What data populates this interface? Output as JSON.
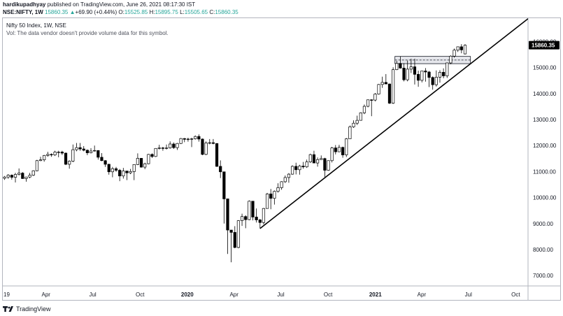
{
  "header": {
    "publisher_name": "hardikupadhyay",
    "publisher_text": " published on TradingView.com, June 26, 2021 08:17:30 IST",
    "symbol": "NSE:NIFTY, 1W",
    "last": "15860.35",
    "change_arrow": "▲",
    "change": "+69.90 (+0.44%)",
    "o_label": "O:",
    "o_value": "15525.85",
    "h_label": "H:",
    "h_value": "15895.75",
    "l_label": "L:",
    "l_value": "15505.65",
    "c_label": "C:",
    "c_value": "15860.35"
  },
  "legend": {
    "title": "Nifty 50 Index, 1W, NSE",
    "volume_note": "Vol: The data vendor doesn't provide volume data for this symbol."
  },
  "footer": {
    "brand": "TradingView",
    "logo_icon": "tradingview-logo-icon"
  },
  "colors": {
    "bull": "#ffffff",
    "bear": "#000000",
    "trendline": "#000000",
    "price_tag": "#000000"
  },
  "chart_data": {
    "type": "candlestick",
    "title": "Nifty 50 Index, 1W, NSE",
    "current_price_label": "15860.35",
    "y_ticks": [
      "7000.00",
      "8000.00",
      "9000.00",
      "10000.00",
      "11000.00",
      "12000.00",
      "13000.00",
      "14000.00",
      "15000.00",
      "16000.00"
    ],
    "ylim": [
      6600,
      16900
    ],
    "x_ticks": [
      "19",
      "Apr",
      "Jul",
      "Oct",
      "2020",
      "Apr",
      "Jul",
      "Oct",
      "2021",
      "Apr",
      "Jul",
      "Oct"
    ],
    "x_tick_dates": [
      "2019-01-07",
      "2019-04-01",
      "2019-07-01",
      "2019-10-01",
      "2020-01-01",
      "2020-04-01",
      "2020-07-01",
      "2020-10-01",
      "2021-01-01",
      "2021-04-01",
      "2021-07-01",
      "2021-10-01"
    ],
    "xlim": [
      "2019-01-07",
      "2021-10-25"
    ],
    "candles": [
      {
        "date": "2019-01-07",
        "o": 10740,
        "h": 10830,
        "l": 10680,
        "c": 10790
      },
      {
        "date": "2019-01-14",
        "o": 10790,
        "h": 10900,
        "l": 10720,
        "c": 10860
      },
      {
        "date": "2019-01-21",
        "o": 10860,
        "h": 10890,
        "l": 10690,
        "c": 10780
      },
      {
        "date": "2019-01-28",
        "o": 10780,
        "h": 10950,
        "l": 10580,
        "c": 10890
      },
      {
        "date": "2019-02-04",
        "o": 10890,
        "h": 11120,
        "l": 10850,
        "c": 10940
      },
      {
        "date": "2019-02-11",
        "o": 10940,
        "h": 10980,
        "l": 10720,
        "c": 10730
      },
      {
        "date": "2019-02-18",
        "o": 10730,
        "h": 10800,
        "l": 10610,
        "c": 10790
      },
      {
        "date": "2019-02-25",
        "o": 10790,
        "h": 10950,
        "l": 10740,
        "c": 10860
      },
      {
        "date": "2019-03-04",
        "o": 10860,
        "h": 11050,
        "l": 10830,
        "c": 11030
      },
      {
        "date": "2019-03-11",
        "o": 11030,
        "h": 11450,
        "l": 11010,
        "c": 11420
      },
      {
        "date": "2019-03-18",
        "o": 11420,
        "h": 11570,
        "l": 11400,
        "c": 11450
      },
      {
        "date": "2019-03-25",
        "o": 11450,
        "h": 11640,
        "l": 11380,
        "c": 11620
      },
      {
        "date": "2019-04-01",
        "o": 11620,
        "h": 11760,
        "l": 11570,
        "c": 11660
      },
      {
        "date": "2019-04-08",
        "o": 11660,
        "h": 11700,
        "l": 11570,
        "c": 11640
      },
      {
        "date": "2019-04-15",
        "o": 11640,
        "h": 11800,
        "l": 11600,
        "c": 11750
      },
      {
        "date": "2019-04-22",
        "o": 11750,
        "h": 11800,
        "l": 11550,
        "c": 11750
      },
      {
        "date": "2019-04-29",
        "o": 11750,
        "h": 11800,
        "l": 11640,
        "c": 11710
      },
      {
        "date": "2019-05-06",
        "o": 11710,
        "h": 11730,
        "l": 11250,
        "c": 11280
      },
      {
        "date": "2019-05-13",
        "o": 11280,
        "h": 11430,
        "l": 11110,
        "c": 11400
      },
      {
        "date": "2019-05-20",
        "o": 11400,
        "h": 12040,
        "l": 11360,
        "c": 11840
      },
      {
        "date": "2019-05-27",
        "o": 11840,
        "h": 12100,
        "l": 11780,
        "c": 11920
      },
      {
        "date": "2019-06-03",
        "o": 11920,
        "h": 12100,
        "l": 11800,
        "c": 11870
      },
      {
        "date": "2019-06-10",
        "o": 11870,
        "h": 11980,
        "l": 11780,
        "c": 11820
      },
      {
        "date": "2019-06-17",
        "o": 11820,
        "h": 11850,
        "l": 11630,
        "c": 11720
      },
      {
        "date": "2019-06-24",
        "o": 11720,
        "h": 11900,
        "l": 11700,
        "c": 11790
      },
      {
        "date": "2019-07-01",
        "o": 11790,
        "h": 12000,
        "l": 11770,
        "c": 11810
      },
      {
        "date": "2019-07-08",
        "o": 11810,
        "h": 11820,
        "l": 11460,
        "c": 11550
      },
      {
        "date": "2019-07-15",
        "o": 11550,
        "h": 11710,
        "l": 11400,
        "c": 11420
      },
      {
        "date": "2019-07-22",
        "o": 11420,
        "h": 11440,
        "l": 11180,
        "c": 11280
      },
      {
        "date": "2019-07-29",
        "o": 11280,
        "h": 11300,
        "l": 10880,
        "c": 10990
      },
      {
        "date": "2019-08-05",
        "o": 10990,
        "h": 11180,
        "l": 10780,
        "c": 11110
      },
      {
        "date": "2019-08-12",
        "o": 11110,
        "h": 11180,
        "l": 10990,
        "c": 11050
      },
      {
        "date": "2019-08-19",
        "o": 11050,
        "h": 11100,
        "l": 10630,
        "c": 10830
      },
      {
        "date": "2019-08-26",
        "o": 10830,
        "h": 11140,
        "l": 10730,
        "c": 11020
      },
      {
        "date": "2019-09-02",
        "o": 11020,
        "h": 11030,
        "l": 10670,
        "c": 10950
      },
      {
        "date": "2019-09-09",
        "o": 10950,
        "h": 11100,
        "l": 10900,
        "c": 11000
      },
      {
        "date": "2019-09-16",
        "o": 11000,
        "h": 11280,
        "l": 10670,
        "c": 11270
      },
      {
        "date": "2019-09-23",
        "o": 11270,
        "h": 11700,
        "l": 11250,
        "c": 11510
      },
      {
        "date": "2019-09-30",
        "o": 11510,
        "h": 11520,
        "l": 11150,
        "c": 11170
      },
      {
        "date": "2019-10-07",
        "o": 11170,
        "h": 11340,
        "l": 11090,
        "c": 11300
      },
      {
        "date": "2019-10-14",
        "o": 11300,
        "h": 11680,
        "l": 11280,
        "c": 11660
      },
      {
        "date": "2019-10-21",
        "o": 11660,
        "h": 11700,
        "l": 11520,
        "c": 11580
      },
      {
        "date": "2019-10-28",
        "o": 11580,
        "h": 11900,
        "l": 11560,
        "c": 11890
      },
      {
        "date": "2019-11-04",
        "o": 11890,
        "h": 12030,
        "l": 11850,
        "c": 11910
      },
      {
        "date": "2019-11-11",
        "o": 11910,
        "h": 11950,
        "l": 11800,
        "c": 11890
      },
      {
        "date": "2019-11-18",
        "o": 11890,
        "h": 12040,
        "l": 11850,
        "c": 11910
      },
      {
        "date": "2019-11-25",
        "o": 11910,
        "h": 12160,
        "l": 11880,
        "c": 12060
      },
      {
        "date": "2019-12-02",
        "o": 12060,
        "h": 12120,
        "l": 11870,
        "c": 11920
      },
      {
        "date": "2019-12-09",
        "o": 11920,
        "h": 12100,
        "l": 11830,
        "c": 12080
      },
      {
        "date": "2019-12-16",
        "o": 12080,
        "h": 12290,
        "l": 12060,
        "c": 12270
      },
      {
        "date": "2019-12-23",
        "o": 12270,
        "h": 12290,
        "l": 12130,
        "c": 12240
      },
      {
        "date": "2019-12-30",
        "o": 12240,
        "h": 12300,
        "l": 12150,
        "c": 12250
      },
      {
        "date": "2020-01-06",
        "o": 12250,
        "h": 12300,
        "l": 11940,
        "c": 12260
      },
      {
        "date": "2020-01-13",
        "o": 12260,
        "h": 12390,
        "l": 12230,
        "c": 12350
      },
      {
        "date": "2020-01-20",
        "o": 12350,
        "h": 12430,
        "l": 12150,
        "c": 12250
      },
      {
        "date": "2020-01-27",
        "o": 12250,
        "h": 12270,
        "l": 11630,
        "c": 11660
      },
      {
        "date": "2020-02-03",
        "o": 11660,
        "h": 12160,
        "l": 11630,
        "c": 12100
      },
      {
        "date": "2020-02-10",
        "o": 12100,
        "h": 12250,
        "l": 12050,
        "c": 12110
      },
      {
        "date": "2020-02-17",
        "o": 12110,
        "h": 12250,
        "l": 12050,
        "c": 12080
      },
      {
        "date": "2020-02-24",
        "o": 12080,
        "h": 12090,
        "l": 11180,
        "c": 11200
      },
      {
        "date": "2020-03-02",
        "o": 11200,
        "h": 11430,
        "l": 10750,
        "c": 10990
      },
      {
        "date": "2020-03-09",
        "o": 10990,
        "h": 10990,
        "l": 9000,
        "c": 9950
      },
      {
        "date": "2020-03-16",
        "o": 9950,
        "h": 9950,
        "l": 7830,
        "c": 8750
      },
      {
        "date": "2020-03-23",
        "o": 8750,
        "h": 8750,
        "l": 7510,
        "c": 8660
      },
      {
        "date": "2020-03-30",
        "o": 8660,
        "h": 8900,
        "l": 8050,
        "c": 8080
      },
      {
        "date": "2020-04-06",
        "o": 8080,
        "h": 9130,
        "l": 8050,
        "c": 9110
      },
      {
        "date": "2020-04-13",
        "o": 9110,
        "h": 9380,
        "l": 8910,
        "c": 9270
      },
      {
        "date": "2020-04-20",
        "o": 9270,
        "h": 9320,
        "l": 8820,
        "c": 9150
      },
      {
        "date": "2020-04-27",
        "o": 9150,
        "h": 9890,
        "l": 9130,
        "c": 9860
      },
      {
        "date": "2020-05-04",
        "o": 9860,
        "h": 9860,
        "l": 9120,
        "c": 9250
      },
      {
        "date": "2020-05-11",
        "o": 9250,
        "h": 9580,
        "l": 9040,
        "c": 9140
      },
      {
        "date": "2020-05-18",
        "o": 9140,
        "h": 9180,
        "l": 8810,
        "c": 9040
      },
      {
        "date": "2020-05-25",
        "o": 9040,
        "h": 9600,
        "l": 8970,
        "c": 9580
      },
      {
        "date": "2020-06-01",
        "o": 9580,
        "h": 10180,
        "l": 9570,
        "c": 10140
      },
      {
        "date": "2020-06-08",
        "o": 10140,
        "h": 10330,
        "l": 9550,
        "c": 9970
      },
      {
        "date": "2020-06-15",
        "o": 9970,
        "h": 10270,
        "l": 9730,
        "c": 10240
      },
      {
        "date": "2020-06-22",
        "o": 10240,
        "h": 10550,
        "l": 10190,
        "c": 10380
      },
      {
        "date": "2020-06-29",
        "o": 10380,
        "h": 10630,
        "l": 10300,
        "c": 10610
      },
      {
        "date": "2020-07-06",
        "o": 10610,
        "h": 10850,
        "l": 10560,
        "c": 10770
      },
      {
        "date": "2020-07-13",
        "o": 10770,
        "h": 10940,
        "l": 10570,
        "c": 10900
      },
      {
        "date": "2020-07-20",
        "o": 10900,
        "h": 11240,
        "l": 10880,
        "c": 11200
      },
      {
        "date": "2020-07-27",
        "o": 11200,
        "h": 11340,
        "l": 10890,
        "c": 11070
      },
      {
        "date": "2020-08-03",
        "o": 11070,
        "h": 11260,
        "l": 10880,
        "c": 11210
      },
      {
        "date": "2020-08-10",
        "o": 11210,
        "h": 11370,
        "l": 11110,
        "c": 11180
      },
      {
        "date": "2020-08-17",
        "o": 11180,
        "h": 11460,
        "l": 11140,
        "c": 11370
      },
      {
        "date": "2020-08-24",
        "o": 11370,
        "h": 11690,
        "l": 11330,
        "c": 11650
      },
      {
        "date": "2020-08-31",
        "o": 11650,
        "h": 11800,
        "l": 11320,
        "c": 11330
      },
      {
        "date": "2020-09-07",
        "o": 11330,
        "h": 11540,
        "l": 11190,
        "c": 11460
      },
      {
        "date": "2020-09-14",
        "o": 11460,
        "h": 11620,
        "l": 11470,
        "c": 11500
      },
      {
        "date": "2020-09-21",
        "o": 11500,
        "h": 11530,
        "l": 10790,
        "c": 11050
      },
      {
        "date": "2020-09-28",
        "o": 11050,
        "h": 11430,
        "l": 11030,
        "c": 11420
      },
      {
        "date": "2020-10-05",
        "o": 11420,
        "h": 11950,
        "l": 11350,
        "c": 11910
      },
      {
        "date": "2020-10-12",
        "o": 11910,
        "h": 12020,
        "l": 11660,
        "c": 11760
      },
      {
        "date": "2020-10-19",
        "o": 11760,
        "h": 12030,
        "l": 11750,
        "c": 11930
      },
      {
        "date": "2020-10-26",
        "o": 11930,
        "h": 11960,
        "l": 11530,
        "c": 11640
      },
      {
        "date": "2020-11-02",
        "o": 11640,
        "h": 12290,
        "l": 11560,
        "c": 12260
      },
      {
        "date": "2020-11-09",
        "o": 12260,
        "h": 12770,
        "l": 12260,
        "c": 12720
      },
      {
        "date": "2020-11-16",
        "o": 12720,
        "h": 12970,
        "l": 12680,
        "c": 12860
      },
      {
        "date": "2020-11-23",
        "o": 12860,
        "h": 13150,
        "l": 12790,
        "c": 12970
      },
      {
        "date": "2020-11-30",
        "o": 12970,
        "h": 13280,
        "l": 12960,
        "c": 13260
      },
      {
        "date": "2020-12-07",
        "o": 13260,
        "h": 13580,
        "l": 13210,
        "c": 13510
      },
      {
        "date": "2020-12-14",
        "o": 13510,
        "h": 13770,
        "l": 13470,
        "c": 13760
      },
      {
        "date": "2020-12-21",
        "o": 13760,
        "h": 13780,
        "l": 13130,
        "c": 13750
      },
      {
        "date": "2020-12-28",
        "o": 13750,
        "h": 14020,
        "l": 13700,
        "c": 13980
      },
      {
        "date": "2021-01-04",
        "o": 13980,
        "h": 14370,
        "l": 13960,
        "c": 14350
      },
      {
        "date": "2021-01-11",
        "o": 14350,
        "h": 14650,
        "l": 14220,
        "c": 14430
      },
      {
        "date": "2021-01-18",
        "o": 14430,
        "h": 14750,
        "l": 14360,
        "c": 14370
      },
      {
        "date": "2021-01-25",
        "o": 14370,
        "h": 14380,
        "l": 13600,
        "c": 13630
      },
      {
        "date": "2021-02-01",
        "o": 13630,
        "h": 15010,
        "l": 13600,
        "c": 14920
      },
      {
        "date": "2021-02-08",
        "o": 14920,
        "h": 15260,
        "l": 14900,
        "c": 15160
      },
      {
        "date": "2021-02-15",
        "o": 15160,
        "h": 15430,
        "l": 14960,
        "c": 14980
      },
      {
        "date": "2021-02-22",
        "o": 14980,
        "h": 15170,
        "l": 14470,
        "c": 14530
      },
      {
        "date": "2021-03-01",
        "o": 14530,
        "h": 15270,
        "l": 14470,
        "c": 14940
      },
      {
        "date": "2021-03-08",
        "o": 14940,
        "h": 15340,
        "l": 14790,
        "c": 15030
      },
      {
        "date": "2021-03-15",
        "o": 15030,
        "h": 15340,
        "l": 14350,
        "c": 14740
      },
      {
        "date": "2021-03-22",
        "o": 14740,
        "h": 14880,
        "l": 14260,
        "c": 14510
      },
      {
        "date": "2021-03-29",
        "o": 14510,
        "h": 14880,
        "l": 14430,
        "c": 14870
      },
      {
        "date": "2021-04-05",
        "o": 14870,
        "h": 14980,
        "l": 14460,
        "c": 14830
      },
      {
        "date": "2021-04-12",
        "o": 14830,
        "h": 14870,
        "l": 14250,
        "c": 14620
      },
      {
        "date": "2021-04-19",
        "o": 14620,
        "h": 14660,
        "l": 14150,
        "c": 14340
      },
      {
        "date": "2021-04-26",
        "o": 14340,
        "h": 14890,
        "l": 14270,
        "c": 14630
      },
      {
        "date": "2021-05-03",
        "o": 14630,
        "h": 14900,
        "l": 14420,
        "c": 14820
      },
      {
        "date": "2021-05-10",
        "o": 14820,
        "h": 14970,
        "l": 14590,
        "c": 14680
      },
      {
        "date": "2021-05-17",
        "o": 14680,
        "h": 15190,
        "l": 14600,
        "c": 15180
      },
      {
        "date": "2021-05-24",
        "o": 15180,
        "h": 15470,
        "l": 15130,
        "c": 15440
      },
      {
        "date": "2021-05-31",
        "o": 15440,
        "h": 15730,
        "l": 15380,
        "c": 15670
      },
      {
        "date": "2021-06-07",
        "o": 15670,
        "h": 15800,
        "l": 15600,
        "c": 15800
      },
      {
        "date": "2021-06-14",
        "o": 15800,
        "h": 15900,
        "l": 15550,
        "c": 15680
      },
      {
        "date": "2021-06-21",
        "o": 15525.85,
        "h": 15895.75,
        "l": 15505.65,
        "c": 15860.35
      }
    ],
    "annotations": [
      {
        "type": "trendline",
        "from": {
          "date": "2020-05-18",
          "value": 8810
        },
        "to": {
          "date": "2021-10-25",
          "value": 16880
        }
      },
      {
        "type": "zone",
        "from_date": "2021-02-08",
        "to_date": "2021-07-05",
        "top": 15430,
        "bottom": 15150,
        "midline": 15290
      }
    ]
  }
}
